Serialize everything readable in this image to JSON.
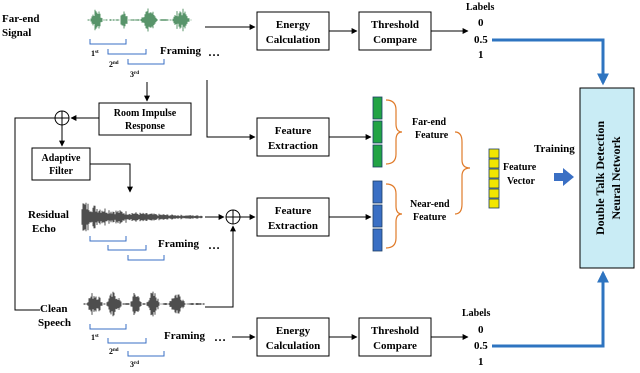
{
  "far_end": {
    "label_line1": "Far-end",
    "label_line2": "Signal",
    "framing": "Framing",
    "ellipsis": "…",
    "frame_1_num": "1",
    "frame_1_sup": "st",
    "frame_2_num": "2",
    "frame_2_sup": "nd",
    "frame_3_num": "3",
    "frame_3_sup": "rd"
  },
  "near_end": {
    "residual_line1": "Residual",
    "residual_line2": "Echo",
    "clean_line1": "Clean",
    "clean_line2": "Speech",
    "framing_residual": "Framing",
    "framing_clean": "Framing",
    "ellipsis": "…",
    "frame_1_num": "1",
    "frame_1_sup": "st",
    "frame_2_num": "2",
    "frame_2_sup": "nd",
    "frame_3_num": "3",
    "frame_3_sup": "rd"
  },
  "blocks": {
    "energy_top_l1": "Energy",
    "energy_top_l2": "Calculation",
    "threshold_top_l1": "Threshold",
    "threshold_top_l2": "Compare",
    "room_l1": "Room Impulse",
    "room_l2": "Response",
    "adaptive_l1": "Adaptive",
    "adaptive_l2": "Filter",
    "fe_top_l1": "Feature",
    "fe_top_l2": "Extraction",
    "fe_bottom_l1": "Feature",
    "fe_bottom_l2": "Extraction",
    "energy_bottom_l1": "Energy",
    "energy_bottom_l2": "Calculation",
    "threshold_bottom_l1": "Threshold",
    "threshold_bottom_l2": "Compare"
  },
  "labels_top": {
    "title": "Labels",
    "v0": "0",
    "v1": "0.5",
    "v2": "1"
  },
  "labels_bottom": {
    "title": "Labels",
    "v0": "0",
    "v1": "0.5",
    "v2": "1"
  },
  "features": {
    "far_l1": "Far-end",
    "far_l2": "Feature",
    "near_l1": "Near-end",
    "near_l2": "Feature",
    "vector_l1": "Feature",
    "vector_l2": "Vector",
    "training": "Training"
  },
  "network": {
    "line1": "Double Talk Detection",
    "line2": "Neural Network"
  },
  "colors": {
    "blue_arrow": "#2e74c0",
    "far_feature": "#22a345",
    "near_feature": "#3a6fc4",
    "vector": "#f2e600",
    "brace": "#e07b2a",
    "network_fill": "#c9ecf5",
    "waveform_far": "#2f7a45"
  }
}
